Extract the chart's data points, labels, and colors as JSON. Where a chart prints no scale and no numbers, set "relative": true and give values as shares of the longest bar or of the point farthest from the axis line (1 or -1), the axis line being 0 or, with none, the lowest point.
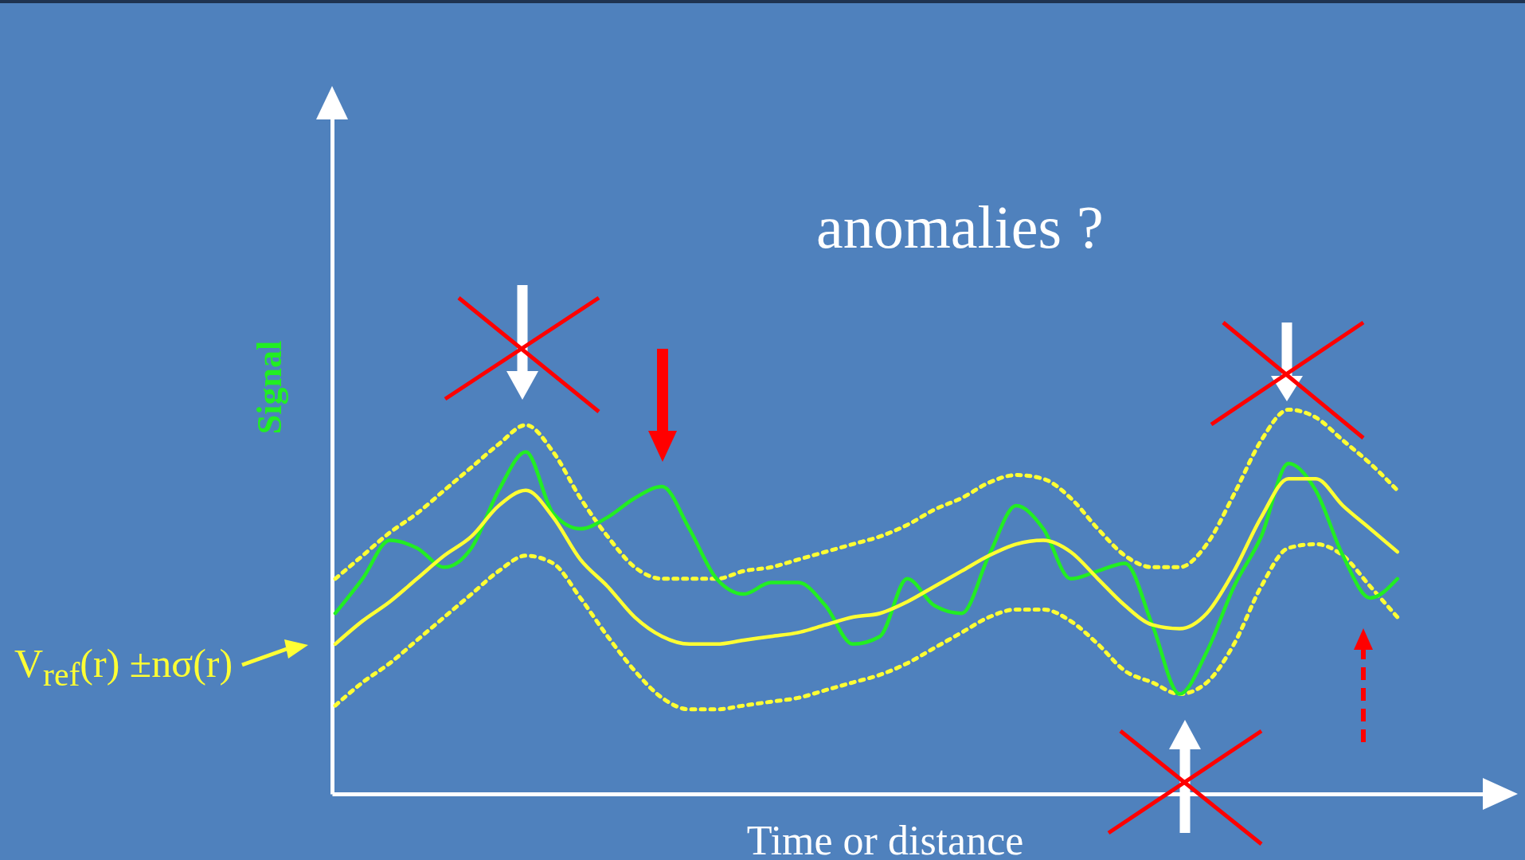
{
  "chart_data": {
    "type": "line",
    "relative": true,
    "xlabel": "Time or distance",
    "ylabel": "Signal",
    "annotations": [
      "anomalies ?",
      "V$_{ref}$(r) ±nσ(r)"
    ],
    "categories": [
      null,
      null,
      null,
      null,
      null,
      null,
      null,
      null,
      null,
      null,
      null,
      null,
      null,
      null,
      null,
      null,
      null,
      null,
      null,
      null,
      null,
      null,
      null,
      null,
      null,
      null,
      null,
      null,
      null,
      null,
      null,
      null,
      null,
      null,
      null,
      null,
      null,
      null,
      null,
      null
    ],
    "series": [
      {
        "color": "#ffff33",
        "line_style": "dotted",
        "values": [
          0.56,
          0.62,
          0.68,
          0.73,
          0.79,
          0.85,
          0.91,
          0.96,
          0.89,
          0.77,
          0.67,
          0.59,
          0.56,
          0.56,
          0.56,
          0.58,
          0.59,
          0.61,
          0.63,
          0.65,
          0.67,
          0.7,
          0.74,
          0.77,
          0.81,
          0.83,
          0.82,
          0.77,
          0.69,
          0.62,
          0.59,
          0.59,
          0.65,
          0.78,
          0.92,
          1.0,
          0.98,
          0.92,
          0.86,
          0.79
        ]
      },
      {
        "color": "#ffff33",
        "line_style": "dotted",
        "values": [
          0.23,
          0.29,
          0.34,
          0.4,
          0.46,
          0.52,
          0.58,
          0.62,
          0.6,
          0.51,
          0.41,
          0.32,
          0.25,
          0.22,
          0.22,
          0.23,
          0.24,
          0.25,
          0.27,
          0.29,
          0.31,
          0.34,
          0.38,
          0.42,
          0.46,
          0.48,
          0.48,
          0.45,
          0.39,
          0.32,
          0.29,
          0.26,
          0.29,
          0.39,
          0.54,
          0.64,
          0.65,
          0.62,
          0.54,
          0.46
        ]
      },
      {
        "color": "#22ee22",
        "line_style": "solid",
        "values": [
          0.47,
          0.56,
          0.66,
          0.64,
          0.59,
          0.64,
          0.79,
          0.89,
          0.73,
          0.69,
          0.72,
          0.77,
          0.8,
          0.69,
          0.56,
          0.52,
          0.55,
          0.55,
          0.49,
          0.39,
          0.41,
          0.56,
          0.49,
          0.47,
          0.62,
          0.75,
          0.69,
          0.56,
          0.58,
          0.6,
          0.44,
          0.26,
          0.37,
          0.54,
          0.67,
          0.86,
          0.79,
          0.62,
          0.51,
          0.56
        ]
      },
      {
        "color": "#ffff33",
        "line_style": "solid",
        "values": [
          0.39,
          0.45,
          0.5,
          0.56,
          0.62,
          0.67,
          0.75,
          0.79,
          0.72,
          0.61,
          0.54,
          0.46,
          0.41,
          0.39,
          0.39,
          0.4,
          0.41,
          0.42,
          0.44,
          0.46,
          0.47,
          0.5,
          0.54,
          0.58,
          0.62,
          0.65,
          0.66,
          0.63,
          0.56,
          0.49,
          0.44,
          0.43,
          0.47,
          0.58,
          0.72,
          0.82,
          0.82,
          0.75,
          0.69,
          0.63
        ]
      }
    ]
  }
}
